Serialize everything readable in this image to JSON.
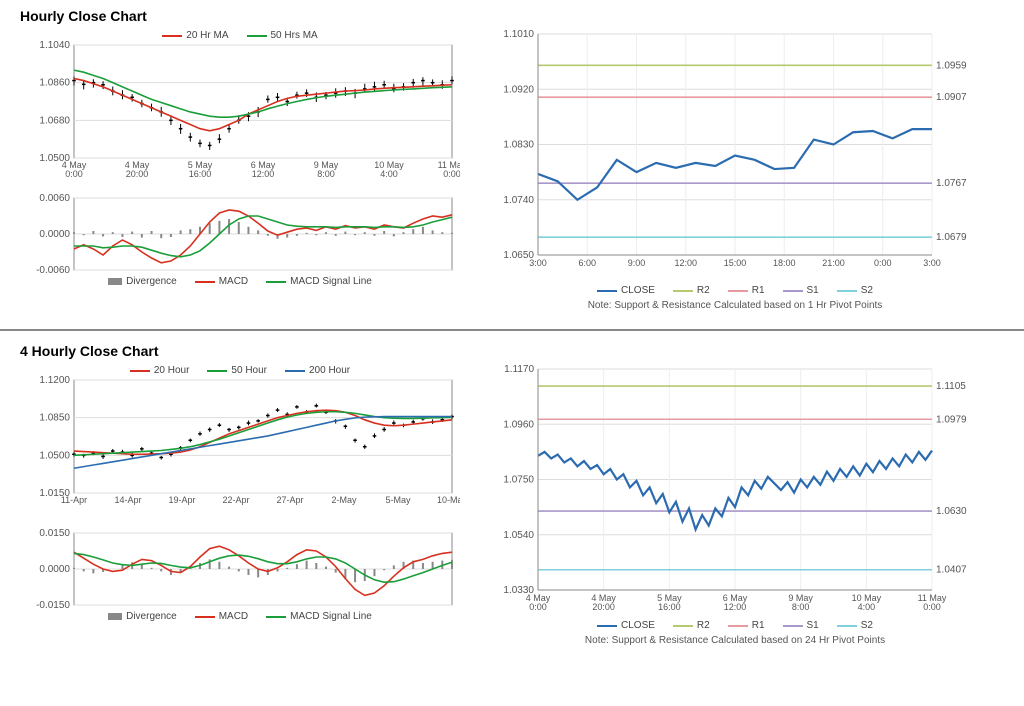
{
  "sections": {
    "hourly": {
      "title": "Hourly Close Chart",
      "price_chart": {
        "type": "candlestick-with-ma",
        "ylim": [
          1.05,
          1.104
        ],
        "yticks": [
          1.05,
          1.068,
          1.086,
          1.104
        ],
        "ytick_labels": [
          "1.0500",
          "1.0680",
          "1.0860",
          "1.1040"
        ],
        "x_labels": [
          "4 May\n0:00",
          "4 May\n20:00",
          "5 May\n16:00",
          "6 May\n12:00",
          "9 May\n8:00",
          "10 May\n4:00",
          "11 May\n0:00"
        ],
        "series": {
          "close": {
            "color": "#000000",
            "data": [
              1.087,
              1.0852,
              1.086,
              1.085,
              1.082,
              1.08,
              1.079,
              1.076,
              1.074,
              1.072,
              1.068,
              1.064,
              1.06,
              1.057,
              1.056,
              1.059,
              1.064,
              1.068,
              1.07,
              1.072,
              1.078,
              1.079,
              1.077,
              1.08,
              1.081,
              1.079,
              1.08,
              1.081,
              1.082,
              1.081,
              1.083,
              1.084,
              1.085,
              1.083,
              1.084,
              1.086,
              1.087,
              1.086,
              1.085,
              1.087
            ]
          },
          "ma20": {
            "label": "20 Hr MA",
            "color": "#d7301f",
            "data": [
              1.088,
              1.087,
              1.0855,
              1.084,
              1.082,
              1.08,
              1.078,
              1.076,
              1.074,
              1.072,
              1.07,
              1.068,
              1.066,
              1.064,
              1.063,
              1.064,
              1.066,
              1.068,
              1.071,
              1.073,
              1.075,
              1.077,
              1.0785,
              1.0795,
              1.08,
              1.0805,
              1.081,
              1.0815,
              1.082,
              1.0822,
              1.0825,
              1.083,
              1.0833,
              1.0836,
              1.0838,
              1.084,
              1.0843,
              1.0845,
              1.0848,
              1.085
            ]
          },
          "ma50": {
            "label": "50 Hrs MA",
            "color": "#1b9e3a",
            "data": [
              1.092,
              1.091,
              1.0895,
              1.088,
              1.086,
              1.084,
              1.082,
              1.08,
              1.078,
              1.0765,
              1.075,
              1.0735,
              1.072,
              1.071,
              1.07,
              1.0695,
              1.0695,
              1.07,
              1.071,
              1.072,
              1.0735,
              1.0748,
              1.076,
              1.077,
              1.078,
              1.0788,
              1.0795,
              1.08,
              1.0805,
              1.081,
              1.0815,
              1.0818,
              1.0822,
              1.0825,
              1.0828,
              1.083,
              1.0833,
              1.0836,
              1.0838,
              1.084
            ]
          }
        },
        "grid_color": "#dddddd",
        "border_color": "#888888"
      },
      "macd_chart": {
        "type": "macd",
        "ylim": [
          -0.006,
          0.006
        ],
        "yticks": [
          -0.006,
          0.0,
          0.006
        ],
        "ytick_labels": [
          "-0.0060",
          "0.0000",
          "0.0060"
        ],
        "series": {
          "divergence": {
            "label": "Divergence",
            "color": "#888888",
            "data": [
              0.0003,
              -0.0002,
              0.0005,
              -0.0004,
              0.0003,
              -0.0005,
              0.0004,
              -0.0006,
              0.0005,
              -0.0007,
              -0.0005,
              0.0006,
              0.0008,
              0.0012,
              0.0018,
              0.0022,
              0.0025,
              0.002,
              0.0012,
              0.0006,
              -0.0003,
              -0.0008,
              -0.0006,
              -0.0003,
              0.0002,
              -0.0002,
              0.0003,
              -0.0003,
              0.0004,
              -0.0002,
              0.0003,
              -0.0003,
              0.0005,
              -0.0004,
              0.0003,
              0.0008,
              0.0012,
              0.0006,
              0.0003,
              0.0002
            ]
          },
          "macd": {
            "label": "MACD",
            "color": "#d7301f",
            "data": [
              -0.0025,
              -0.0018,
              -0.0025,
              -0.0035,
              -0.002,
              -0.001,
              -0.0018,
              -0.003,
              -0.004,
              -0.0048,
              -0.0045,
              -0.0035,
              -0.002,
              0.0,
              0.002,
              0.0035,
              0.004,
              0.0038,
              0.003,
              0.0018,
              0.0005,
              -0.0002,
              0.0003,
              0.0008,
              0.001,
              0.0006,
              0.0012,
              0.0008,
              0.0014,
              0.001,
              0.0012,
              0.0008,
              0.0015,
              0.0012,
              0.001,
              0.0018,
              0.0025,
              0.003,
              0.0028,
              0.0032
            ]
          },
          "signal": {
            "label": "MACD Signal Line",
            "color": "#1b9e3a",
            "data": [
              -0.002,
              -0.002,
              -0.002,
              -0.0023,
              -0.0022,
              -0.002,
              -0.002,
              -0.0022,
              -0.0027,
              -0.0032,
              -0.0036,
              -0.0038,
              -0.0035,
              -0.0028,
              -0.0015,
              0.0,
              0.0015,
              0.0025,
              0.003,
              0.003,
              0.0025,
              0.002,
              0.0015,
              0.0013,
              0.0012,
              0.0012,
              0.0012,
              0.0011,
              0.0012,
              0.0012,
              0.0012,
              0.0011,
              0.0012,
              0.0012,
              0.0011,
              0.0012,
              0.0015,
              0.002,
              0.0024,
              0.0028
            ]
          }
        }
      },
      "sr_chart": {
        "type": "line-with-levels",
        "ylim": [
          1.065,
          1.101
        ],
        "yticks": [
          1.065,
          1.074,
          1.083,
          1.092,
          1.101
        ],
        "ytick_labels": [
          "1.0650",
          "1.0740",
          "1.0830",
          "1.0920",
          "1.1010"
        ],
        "x_labels": [
          "3:00",
          "6:00",
          "9:00",
          "12:00",
          "15:00",
          "18:00",
          "21:00",
          "0:00",
          "3:00"
        ],
        "levels": {
          "R2": {
            "color": "#b5c96f",
            "value": 1.0959,
            "label": "1.0959"
          },
          "R1": {
            "color": "#e79ba0",
            "value": 1.0907,
            "label": "1.0907"
          },
          "S1": {
            "color": "#a997c9",
            "value": 1.0767,
            "label": "1.0767"
          },
          "S2": {
            "color": "#7fd1dc",
            "value": 1.0679,
            "label": "1.0679"
          }
        },
        "close": {
          "label": "CLOSE",
          "color": "#2b6cb0",
          "data": [
            1.0782,
            1.077,
            1.074,
            1.076,
            1.0805,
            1.0785,
            1.08,
            1.0792,
            1.08,
            1.0795,
            1.0812,
            1.0805,
            1.079,
            1.0792,
            1.0838,
            1.083,
            1.085,
            1.0852,
            1.084,
            1.0855,
            1.0855
          ]
        },
        "note": "Note: Support & Resistance Calculated based on 1 Hr Pivot Points"
      }
    },
    "fourhourly": {
      "title": "4 Hourly Close Chart",
      "price_chart": {
        "type": "candlestick-with-ma",
        "ylim": [
          1.015,
          1.12
        ],
        "yticks": [
          1.015,
          1.05,
          1.085,
          1.12
        ],
        "ytick_labels": [
          "1.0150",
          "1.0500",
          "1.0850",
          "1.1200"
        ],
        "x_labels": [
          "11-Apr",
          "14-Apr",
          "19-Apr",
          "22-Apr",
          "27-Apr",
          "2-May",
          "5-May",
          "10-May"
        ],
        "series": {
          "close": {
            "color": "#000000",
            "data": [
              1.051,
              1.05,
              1.052,
              1.049,
              1.054,
              1.053,
              1.05,
              1.056,
              1.052,
              1.048,
              1.051,
              1.057,
              1.064,
              1.07,
              1.074,
              1.078,
              1.074,
              1.076,
              1.08,
              1.082,
              1.087,
              1.092,
              1.088,
              1.095,
              1.09,
              1.096,
              1.09,
              1.082,
              1.077,
              1.064,
              1.058,
              1.068,
              1.074,
              1.08,
              1.078,
              1.081,
              1.084,
              1.081,
              1.083,
              1.086
            ]
          },
          "ma20": {
            "label": "20 Hour",
            "color": "#d7301f",
            "data": [
              1.054,
              1.0535,
              1.053,
              1.0525,
              1.052,
              1.0515,
              1.051,
              1.051,
              1.0512,
              1.0515,
              1.052,
              1.053,
              1.055,
              1.058,
              1.062,
              1.066,
              1.07,
              1.073,
              1.076,
              1.079,
              1.082,
              1.085,
              1.087,
              1.089,
              1.0905,
              1.0915,
              1.092,
              1.0915,
              1.09,
              1.087,
              1.083,
              1.08,
              1.078,
              1.0775,
              1.078,
              1.079,
              1.08,
              1.081,
              1.082,
              1.083
            ]
          },
          "ma50": {
            "label": "50 Hour",
            "color": "#1b9e3a",
            "data": [
              1.05,
              1.0505,
              1.051,
              1.0515,
              1.052,
              1.0525,
              1.053,
              1.0535,
              1.054,
              1.0545,
              1.0555,
              1.0565,
              1.058,
              1.06,
              1.0625,
              1.065,
              1.068,
              1.071,
              1.074,
              1.077,
              1.08,
              1.083,
              1.0855,
              1.0875,
              1.089,
              1.09,
              1.0905,
              1.0905,
              1.09,
              1.089,
              1.0875,
              1.086,
              1.085,
              1.0845,
              1.0843,
              1.0843,
              1.0845,
              1.0848,
              1.085,
              1.0853
            ]
          },
          "ma200": {
            "label": "200 Hour",
            "color": "#2b6cb0",
            "data": [
              1.038,
              1.0395,
              1.041,
              1.0425,
              1.044,
              1.0455,
              1.047,
              1.0485,
              1.05,
              1.0515,
              1.053,
              1.0545,
              1.056,
              1.0575,
              1.059,
              1.0605,
              1.062,
              1.0635,
              1.065,
              1.0665,
              1.068,
              1.07,
              1.072,
              1.074,
              1.076,
              1.078,
              1.08,
              1.082,
              1.0835,
              1.0848,
              1.0855,
              1.0858,
              1.086,
              1.086,
              1.086,
              1.086,
              1.086,
              1.086,
              1.086,
              1.086
            ]
          }
        }
      },
      "macd_chart": {
        "type": "macd",
        "ylim": [
          -0.015,
          0.015
        ],
        "yticks": [
          -0.015,
          0.0,
          0.015
        ],
        "ytick_labels": [
          "-0.0150",
          "0.0000",
          "0.0150"
        ],
        "series": {
          "divergence": {
            "label": "Divergence",
            "color": "#888888",
            "data": [
              0.0005,
              -0.001,
              -0.0018,
              -0.0012,
              0.0,
              0.0015,
              0.0028,
              0.002,
              0.0005,
              -0.001,
              -0.0025,
              -0.0015,
              0.0005,
              0.0025,
              0.004,
              0.003,
              0.001,
              -0.001,
              -0.0025,
              -0.0035,
              -0.0025,
              -0.001,
              0.0005,
              0.002,
              0.0035,
              0.0025,
              0.001,
              -0.0015,
              -0.004,
              -0.0055,
              -0.005,
              -0.003,
              -0.0005,
              0.0015,
              0.003,
              0.0035,
              0.0025,
              0.003,
              0.0035,
              0.0038
            ]
          },
          "macd": {
            "label": "MACD",
            "color": "#d7301f",
            "data": [
              0.007,
              0.0045,
              0.002,
              0.0,
              -0.001,
              -0.0005,
              0.002,
              0.004,
              0.0035,
              0.0015,
              -0.001,
              -0.0015,
              0.001,
              0.005,
              0.0085,
              0.0095,
              0.008,
              0.0055,
              0.0025,
              0.0,
              -0.001,
              0.0005,
              0.003,
              0.006,
              0.008,
              0.0075,
              0.005,
              0.001,
              -0.004,
              -0.0085,
              -0.011,
              -0.01,
              -0.007,
              -0.003,
              0.0005,
              0.003,
              0.004,
              0.0055,
              0.0065,
              0.007
            ]
          },
          "signal": {
            "label": "MACD Signal Line",
            "color": "#1b9e3a",
            "data": [
              0.0065,
              0.006,
              0.005,
              0.0038,
              0.0025,
              0.0018,
              0.0015,
              0.002,
              0.0025,
              0.0023,
              0.0015,
              0.0008,
              0.0005,
              0.0015,
              0.003,
              0.0045,
              0.0055,
              0.0058,
              0.0053,
              0.0043,
              0.003,
              0.0022,
              0.0022,
              0.003,
              0.0042,
              0.005,
              0.005,
              0.0042,
              0.0025,
              0.0,
              -0.0025,
              -0.0045,
              -0.0055,
              -0.0053,
              -0.0042,
              -0.0028,
              -0.0015,
              0.0,
              0.0015,
              0.0028
            ]
          }
        }
      },
      "sr_chart": {
        "type": "line-with-levels",
        "ylim": [
          1.033,
          1.117
        ],
        "yticks": [
          1.033,
          1.054,
          1.075,
          1.096,
          1.117
        ],
        "ytick_labels": [
          "1.0330",
          "1.0540",
          "1.0750",
          "1.0960",
          "1.1170"
        ],
        "x_labels": [
          "4 May\n0:00",
          "4 May\n20:00",
          "5 May\n16:00",
          "6 May\n12:00",
          "9 May\n8:00",
          "10 May\n4:00",
          "11 May\n0:00"
        ],
        "levels": {
          "R2": {
            "color": "#b5c96f",
            "value": 1.1105,
            "label": "1.1105"
          },
          "R1": {
            "color": "#e79ba0",
            "value": 1.0979,
            "label": "1.0979"
          },
          "S1": {
            "color": "#a997c9",
            "value": 1.063,
            "label": "1.0630"
          },
          "S2": {
            "color": "#7fd1dc",
            "value": 1.0407,
            "label": "1.0407"
          }
        },
        "close": {
          "label": "CLOSE",
          "color": "#2b6cb0",
          "data": [
            1.084,
            1.0855,
            1.083,
            1.0845,
            1.0815,
            1.083,
            1.08,
            1.082,
            1.079,
            1.0805,
            1.077,
            1.079,
            1.075,
            1.077,
            1.072,
            1.0745,
            1.069,
            1.072,
            1.066,
            1.0695,
            1.0625,
            1.0665,
            1.059,
            1.064,
            1.056,
            1.0615,
            1.0575,
            1.064,
            1.061,
            1.068,
            1.0645,
            1.072,
            1.069,
            1.0745,
            1.0715,
            1.076,
            1.0735,
            1.071,
            1.074,
            1.07,
            1.075,
            1.072,
            1.076,
            1.073,
            1.078,
            1.0745,
            1.079,
            1.076,
            1.08,
            1.0765,
            1.081,
            1.0778,
            1.082,
            1.079,
            1.083,
            1.08,
            1.0845,
            1.0815,
            1.0855,
            1.0825,
            1.086
          ]
        },
        "note": "Note: Support & Resistance Calculated based on 24 Hr Pivot Points"
      }
    }
  }
}
